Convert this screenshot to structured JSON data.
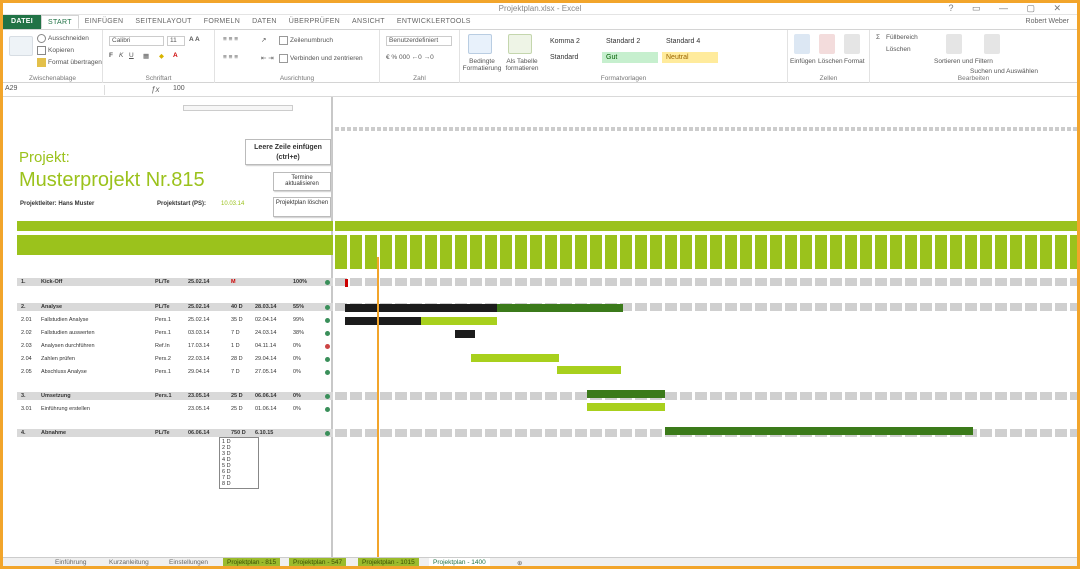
{
  "window": {
    "title": "Projektplan.xlsx - Excel",
    "controls": "? ▭ — ▢ ✕"
  },
  "tabs": {
    "items": [
      "DATEI",
      "START",
      "EINFÜGEN",
      "SEITENLAYOUT",
      "FORMELN",
      "DATEN",
      "ÜBERPRÜFEN",
      "ANSICHT",
      "ENTWICKLERTOOLS"
    ],
    "user": "Robert Weber"
  },
  "ribbon": {
    "clipboard": {
      "label": "Zwischenablage",
      "cut": "Ausschneiden",
      "copy": "Kopieren",
      "format_painter": "Format übertragen"
    },
    "font": {
      "label": "Schriftart",
      "name": "Calibri",
      "size": "11"
    },
    "alignment": {
      "label": "Ausrichtung",
      "wrap": "Zeilenumbruch",
      "merge": "Verbinden und zentrieren"
    },
    "number": {
      "label": "Zahl",
      "format": "Benutzerdefiniert"
    },
    "styles": {
      "label": "Formatvorlagen",
      "cond": "Bedingte Formatierung",
      "table": "Als Tabelle formatieren",
      "items": [
        "Komma 2",
        "Standard 2",
        "Standard 4",
        "Standard",
        "Gut",
        "Neutral"
      ]
    },
    "cells": {
      "label": "Zellen",
      "insert": "Einfügen",
      "delete": "Löschen",
      "format": "Format"
    },
    "editing": {
      "label": "Bearbeiten",
      "sort": "Sortieren und Filtern",
      "find": "Suchen und Auswählen",
      "fill": "Füllbereich",
      "clear": "Löschen"
    }
  },
  "formula": {
    "name": "A29",
    "value": "100"
  },
  "sheet": {
    "title_small": "Projekt:",
    "title_big": "Musterprojekt Nr.815",
    "leader": "Projektleiter: Hans Muster",
    "start_label": "Projektstart (PS):",
    "start_value": "10.03.14",
    "btn_insert": "Leere Zeile einfügen (ctrl+e)",
    "btn_export": "Termine aktualisieren",
    "btn_delete": "Projektplan löschen",
    "rows": [
      {
        "nr": "1.",
        "task": "Kick-Off",
        "resp": "PL/Te",
        "start": "25.02.14",
        "dur": "M",
        "end": "",
        "pct": "100%",
        "bold": true
      },
      {
        "nr": "2.",
        "task": "Analyse",
        "resp": "PL/Te",
        "start": "25.02.14",
        "dur": "40 D",
        "end": "28.03.14",
        "pct": "55%",
        "bold": true
      },
      {
        "nr": "2.01",
        "task": "Fallstudien Analyse",
        "resp": "Pers.1",
        "start": "25.02.14",
        "dur": "35 D",
        "end": "02.04.14",
        "pct": "99%"
      },
      {
        "nr": "2.02",
        "task": "Fallstudien auswerten",
        "resp": "Pers.1",
        "start": "03.03.14",
        "dur": "7 D",
        "end": "24.03.14",
        "pct": "38%"
      },
      {
        "nr": "2.03",
        "task": "Analysen durchführen",
        "resp": "Ref.In",
        "start": "17.03.14",
        "dur": "1 D",
        "end": "04.11.14",
        "pct": "0%"
      },
      {
        "nr": "2.04",
        "task": "Zahlen prüfen",
        "resp": "Pers.2",
        "start": "22.03.14",
        "dur": "28 D",
        "end": "29.04.14",
        "pct": "0%"
      },
      {
        "nr": "2.05",
        "task": "Abschluss Analyse",
        "resp": "Pers.1",
        "start": "29.04.14",
        "dur": "7 D",
        "end": "27.05.14",
        "pct": "0%"
      },
      {
        "nr": "3.",
        "task": "Umsetzung",
        "resp": "Pers.1",
        "start": "23.05.14",
        "dur": "25 D",
        "end": "06.06.14",
        "pct": "0%",
        "bold": true
      },
      {
        "nr": "3.01",
        "task": "Einführung erstellen",
        "resp": "",
        "start": "23.05.14",
        "dur": "25 D",
        "end": "01.06.14",
        "pct": "0%"
      },
      {
        "nr": "4.",
        "task": "Abnahme",
        "resp": "PL/Te",
        "start": "06.06.14",
        "dur": "750 D",
        "end": "6.10.15",
        "pct": "",
        "bold": true
      }
    ],
    "dropdown": [
      "1 D",
      "2 D",
      "3 D",
      "4 D",
      "5 D",
      "6 D",
      "7 D",
      "8 D"
    ]
  },
  "sheet_tabs": [
    "Einführung",
    "Kurzanleitung",
    "Einstellungen",
    "Projektplan - 815",
    "Projektplan - 547",
    "Projektplan - 1015",
    "Projektplan - 1400"
  ],
  "colors": {
    "accent": "#9bc21c",
    "dark": "#1c1c1c",
    "gantt_light": "#a8d01d",
    "gantt_dark": "#3b7a1a",
    "today": "#f2a52b"
  }
}
